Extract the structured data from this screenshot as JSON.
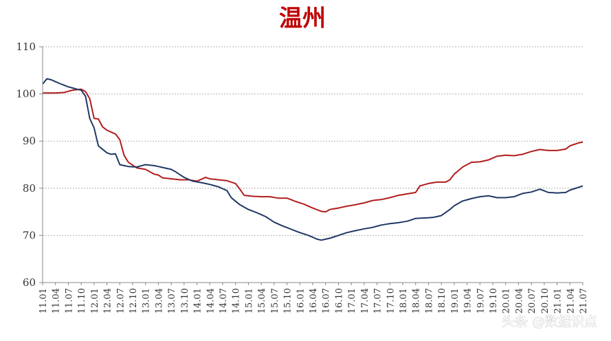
{
  "chart_data": {
    "type": "line",
    "title": "温州",
    "xlabel": "",
    "ylabel": "",
    "ylim": [
      60,
      110
    ],
    "yticks": [
      60,
      70,
      80,
      90,
      100,
      110
    ],
    "grid": true,
    "legend": "none",
    "categories": [
      "11.01",
      "11.04",
      "11.07",
      "11.10",
      "12.01",
      "12.04",
      "12.07",
      "12.10",
      "13.01",
      "13.04",
      "13.07",
      "13.10",
      "14.01",
      "14.04",
      "14.07",
      "14.10",
      "15.01",
      "15.04",
      "15.07",
      "15.10",
      "16.01",
      "16.04",
      "16.07",
      "16.10",
      "17.01",
      "17.04",
      "17.07",
      "17.10",
      "18.01",
      "18.04",
      "18.07",
      "18.10",
      "19.01",
      "19.04",
      "19.07",
      "19.10",
      "20.01",
      "20.04",
      "20.07",
      "20.10",
      "21.01",
      "21.04",
      "21.07"
    ],
    "n_points": 127,
    "series": [
      {
        "color": "#b01c1c",
        "anchors": [
          [
            0,
            100.2
          ],
          [
            3,
            100.2
          ],
          [
            5,
            100.3
          ],
          [
            7,
            100.8
          ],
          [
            9,
            101.0
          ],
          [
            10,
            100.5
          ],
          [
            11,
            99.0
          ],
          [
            12,
            94.8
          ],
          [
            13,
            94.7
          ],
          [
            14,
            93.0
          ],
          [
            15,
            92.3
          ],
          [
            17,
            91.5
          ],
          [
            18,
            90.3
          ],
          [
            19,
            87.0
          ],
          [
            20,
            85.5
          ],
          [
            22,
            84.3
          ],
          [
            24,
            84.0
          ],
          [
            26,
            83.0
          ],
          [
            27,
            82.8
          ],
          [
            28,
            82.2
          ],
          [
            30,
            82.0
          ],
          [
            32,
            81.8
          ],
          [
            34,
            81.8
          ],
          [
            36,
            81.5
          ],
          [
            38,
            82.3
          ],
          [
            39,
            82.0
          ],
          [
            41,
            81.8
          ],
          [
            43,
            81.6
          ],
          [
            45,
            81.0
          ],
          [
            46,
            79.8
          ],
          [
            47,
            78.5
          ],
          [
            49,
            78.3
          ],
          [
            51,
            78.2
          ],
          [
            53,
            78.2
          ],
          [
            55,
            77.9
          ],
          [
            57,
            77.9
          ],
          [
            59,
            77.2
          ],
          [
            61,
            76.6
          ],
          [
            63,
            75.8
          ],
          [
            65,
            75.1
          ],
          [
            66,
            75.0
          ],
          [
            67,
            75.5
          ],
          [
            69,
            75.8
          ],
          [
            71,
            76.2
          ],
          [
            73,
            76.5
          ],
          [
            75,
            76.9
          ],
          [
            77,
            77.4
          ],
          [
            79,
            77.6
          ],
          [
            81,
            78.0
          ],
          [
            83,
            78.5
          ],
          [
            85,
            78.8
          ],
          [
            87,
            79.1
          ],
          [
            88,
            80.5
          ],
          [
            90,
            81.0
          ],
          [
            92,
            81.3
          ],
          [
            94,
            81.3
          ],
          [
            95,
            81.8
          ],
          [
            96,
            83.0
          ],
          [
            98,
            84.5
          ],
          [
            100,
            85.5
          ],
          [
            102,
            85.6
          ],
          [
            104,
            86.0
          ],
          [
            106,
            86.8
          ],
          [
            108,
            87.0
          ],
          [
            110,
            86.9
          ],
          [
            112,
            87.2
          ],
          [
            114,
            87.8
          ],
          [
            116,
            88.2
          ],
          [
            118,
            88.0
          ],
          [
            120,
            88.0
          ],
          [
            122,
            88.3
          ],
          [
            123,
            89.0
          ],
          [
            125,
            89.6
          ],
          [
            126,
            89.8
          ]
        ],
        "values_note": ""
      },
      {
        "color": "#1f3864",
        "anchors": [
          [
            0,
            102.1
          ],
          [
            1,
            103.2
          ],
          [
            2,
            103.0
          ],
          [
            4,
            102.2
          ],
          [
            6,
            101.5
          ],
          [
            8,
            101.0
          ],
          [
            9,
            100.8
          ],
          [
            10,
            99.5
          ],
          [
            11,
            94.8
          ],
          [
            12,
            92.8
          ],
          [
            13,
            89.0
          ],
          [
            15,
            87.5
          ],
          [
            16,
            87.2
          ],
          [
            17,
            87.3
          ],
          [
            18,
            85.0
          ],
          [
            20,
            84.6
          ],
          [
            22,
            84.5
          ],
          [
            24,
            85.0
          ],
          [
            26,
            84.8
          ],
          [
            28,
            84.4
          ],
          [
            30,
            84.0
          ],
          [
            31,
            83.5
          ],
          [
            33,
            82.3
          ],
          [
            35,
            81.5
          ],
          [
            37,
            81.2
          ],
          [
            39,
            80.8
          ],
          [
            41,
            80.3
          ],
          [
            43,
            79.5
          ],
          [
            44,
            78.0
          ],
          [
            46,
            76.5
          ],
          [
            48,
            75.5
          ],
          [
            50,
            74.8
          ],
          [
            52,
            74.0
          ],
          [
            54,
            72.8
          ],
          [
            56,
            72.0
          ],
          [
            58,
            71.3
          ],
          [
            60,
            70.6
          ],
          [
            62,
            70.0
          ],
          [
            64,
            69.2
          ],
          [
            65,
            69.0
          ],
          [
            67,
            69.4
          ],
          [
            69,
            70.0
          ],
          [
            71,
            70.6
          ],
          [
            73,
            71.0
          ],
          [
            75,
            71.4
          ],
          [
            77,
            71.7
          ],
          [
            79,
            72.2
          ],
          [
            81,
            72.5
          ],
          [
            83,
            72.7
          ],
          [
            85,
            73.0
          ],
          [
            87,
            73.6
          ],
          [
            89,
            73.7
          ],
          [
            91,
            73.8
          ],
          [
            93,
            74.2
          ],
          [
            95,
            75.5
          ],
          [
            96,
            76.3
          ],
          [
            98,
            77.3
          ],
          [
            100,
            77.8
          ],
          [
            102,
            78.2
          ],
          [
            104,
            78.4
          ],
          [
            106,
            78.0
          ],
          [
            108,
            78.0
          ],
          [
            110,
            78.2
          ],
          [
            112,
            78.9
          ],
          [
            114,
            79.2
          ],
          [
            116,
            79.8
          ],
          [
            118,
            79.1
          ],
          [
            120,
            79.0
          ],
          [
            122,
            79.1
          ],
          [
            123,
            79.6
          ],
          [
            125,
            80.2
          ],
          [
            126,
            80.5
          ]
        ],
        "values_note": ""
      }
    ]
  },
  "watermark": "头条 @数据识点"
}
